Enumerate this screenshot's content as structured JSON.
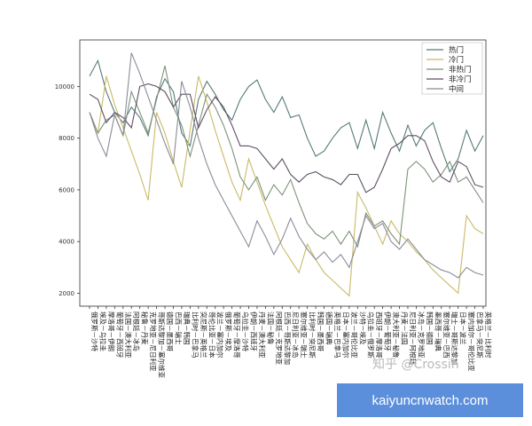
{
  "chart_data": {
    "type": "line",
    "title": "",
    "xlabel": "",
    "ylabel": "",
    "ylim": [
      1500,
      11800
    ],
    "yticks": [
      2000,
      4000,
      6000,
      8000,
      10000
    ],
    "grid": false,
    "legend_position": "top-right",
    "categories": [
      "俄罗斯－沙特",
      "埃及－乌拉圭",
      "摩洛哥－伊朗",
      "葡萄牙－西班牙",
      "法国－澳大利亚",
      "阿根廷－冰岛",
      "秘鲁－丹麦",
      "克罗地亚－尼日利亚",
      "哥斯达黎加－塞尔维亚",
      "德国－墨西哥",
      "巴西－瑞士",
      "瑞典－韩国",
      "比利时－巴拿马",
      "突尼斯－英格兰",
      "哥伦比亚－日本",
      "波兰－塞内加尔",
      "俄罗斯－埃及",
      "葡萄牙－摩洛哥",
      "乌拉圭－沙特",
      "伊朗－西班牙",
      "丹麦－澳大利亚",
      "法国－秘鲁",
      "阿根廷－克罗地亚",
      "巴西－哥斯达黎加",
      "尼日利亚－冰岛",
      "塞尔维亚－瑞士",
      "比利时－突尼斯",
      "韩国－墨西哥",
      "德国－瑞典",
      "英格兰－巴拿马",
      "日本－塞内加尔",
      "波兰－哥伦比亚",
      "沙特－埃及",
      "乌拉圭－俄罗斯",
      "西班牙－摩洛哥",
      "伊朗－葡萄牙",
      "澳大利亚－秘鲁",
      "丹麦－法国",
      "尼日利亚－阿根廷",
      "冰岛－克罗地亚",
      "韩国－德国",
      "墨西哥－瑞典",
      "塞尔维亚－巴西",
      "瑞士－哥斯达黎加",
      "日本－波兰",
      "塞内加尔－哥伦比亚",
      "巴拿马－突尼斯",
      "英格兰－比利时"
    ],
    "series": [
      {
        "name": "热门",
        "color": "#557a78",
        "values": [
          10400,
          11000,
          9800,
          9000,
          8600,
          9200,
          8800,
          8100,
          9600,
          10300,
          9800,
          8200,
          7700,
          9500,
          10200,
          9700,
          9100,
          8700,
          9500,
          10000,
          10250,
          9500,
          9000,
          9600,
          8800,
          8900,
          8000,
          7300,
          7500,
          8000,
          8400,
          8600,
          7600,
          8700,
          7600,
          9000,
          8200,
          7500,
          8500,
          7700,
          8300,
          8600,
          7600,
          6700,
          7200,
          8300,
          7500,
          8100
        ]
      },
      {
        "name": "冷门",
        "color": "#c9ba66",
        "values": [
          9000,
          8200,
          10400,
          9300,
          8400,
          7500,
          6600,
          5600,
          9000,
          8200,
          7100,
          6100,
          8300,
          10400,
          9400,
          8300,
          7300,
          6300,
          5600,
          7200,
          6300,
          5400,
          4600,
          3800,
          3300,
          2800,
          3900,
          3300,
          2800,
          2500,
          2200,
          1900,
          5900,
          5300,
          4600,
          3900,
          4800,
          4300,
          4000,
          3600,
          3300,
          2900,
          2600,
          2300,
          2000,
          5000,
          4500,
          4300
        ]
      },
      {
        "name": "非热门",
        "color": "#7d927a",
        "values": [
          9000,
          8200,
          8700,
          8900,
          8100,
          9800,
          9000,
          8200,
          9500,
          10800,
          9200,
          8500,
          7300,
          8500,
          9700,
          9200,
          8500,
          7600,
          6500,
          6000,
          6500,
          5600,
          6200,
          5800,
          6400,
          5500,
          4700,
          4300,
          4100,
          4400,
          3900,
          4400,
          3800,
          5100,
          4600,
          4800,
          4300,
          3900,
          6800,
          7100,
          6800,
          6300,
          6600,
          7100,
          6300,
          6500,
          6000,
          5500
        ]
      },
      {
        "name": "非冷门",
        "color": "#5e4f63",
        "values": [
          9700,
          9500,
          8600,
          9000,
          8800,
          8400,
          10000,
          10100,
          10000,
          9800,
          9200,
          9700,
          9700,
          8400,
          9100,
          9600,
          9200,
          8500,
          7700,
          7700,
          7600,
          7200,
          6800,
          7200,
          6600,
          6300,
          6600,
          6700,
          6500,
          6400,
          6200,
          6600,
          6600,
          5900,
          6100,
          6800,
          7600,
          7800,
          8100,
          8100,
          7900,
          7100,
          6500,
          6300,
          7100,
          6900,
          6200,
          6100
        ]
      },
      {
        "name": "中间",
        "color": "#8b8b99",
        "values": [
          9000,
          8000,
          7300,
          8900,
          8100,
          11300,
          10500,
          9600,
          8700,
          7800,
          7000,
          10200,
          9200,
          8000,
          7000,
          6200,
          5600,
          5000,
          4400,
          3800,
          4800,
          4200,
          3500,
          4100,
          4900,
          4200,
          3700,
          3300,
          3600,
          3200,
          3500,
          3000,
          4000,
          5000,
          4500,
          4700,
          4000,
          3700,
          4100,
          3700,
          3300,
          3100,
          2900,
          2800,
          2600,
          3000,
          2800,
          2700
        ]
      }
    ]
  },
  "watermark": "知乎 @Crossin",
  "banner": {
    "text": "kaiyuncnwatch.com",
    "color": "#5b8fdc"
  }
}
